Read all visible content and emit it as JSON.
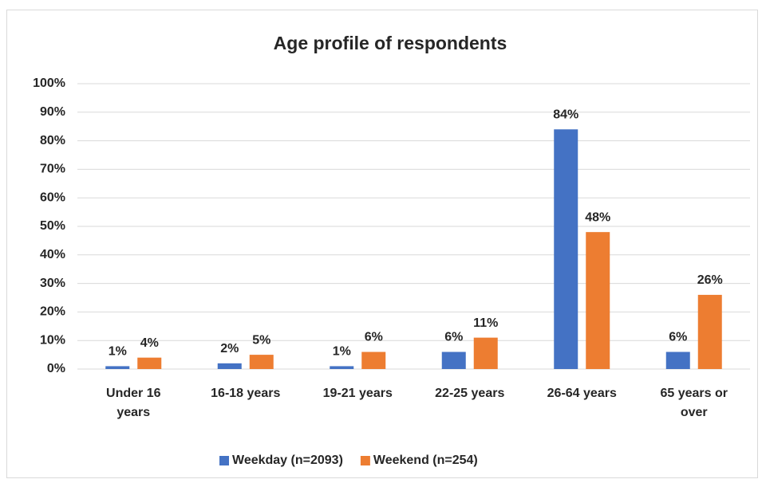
{
  "chart_data": {
    "type": "bar",
    "title": "Age profile of respondents",
    "categories": [
      "Under 16 years",
      "16-18 years",
      "19-21 years",
      "22-25 years",
      "26-64 years",
      "65 years or over"
    ],
    "series": [
      {
        "name": "Weekday (n=2093)",
        "color": "#4472c4",
        "values": [
          1,
          2,
          1,
          6,
          84,
          6
        ],
        "value_labels": [
          "1%",
          "2%",
          "1%",
          "6%",
          "84%",
          "6%"
        ]
      },
      {
        "name": "Weekend (n=254)",
        "color": "#ed7d31",
        "values": [
          4,
          5,
          6,
          11,
          48,
          26
        ],
        "value_labels": [
          "4%",
          "5%",
          "6%",
          "11%",
          "48%",
          "26%"
        ]
      }
    ],
    "ylim": [
      0,
      100
    ],
    "yticks": [
      {
        "value": 0,
        "label": "0%"
      },
      {
        "value": 10,
        "label": "10%"
      },
      {
        "value": 20,
        "label": "20%"
      },
      {
        "value": 30,
        "label": "30%"
      },
      {
        "value": 40,
        "label": "40%"
      },
      {
        "value": 50,
        "label": "50%"
      },
      {
        "value": 60,
        "label": "60%"
      },
      {
        "value": 70,
        "label": "70%"
      },
      {
        "value": 80,
        "label": "80%"
      },
      {
        "value": 90,
        "label": "90%"
      },
      {
        "value": 100,
        "label": "100%"
      }
    ],
    "grid": true,
    "legend": "bottom"
  }
}
